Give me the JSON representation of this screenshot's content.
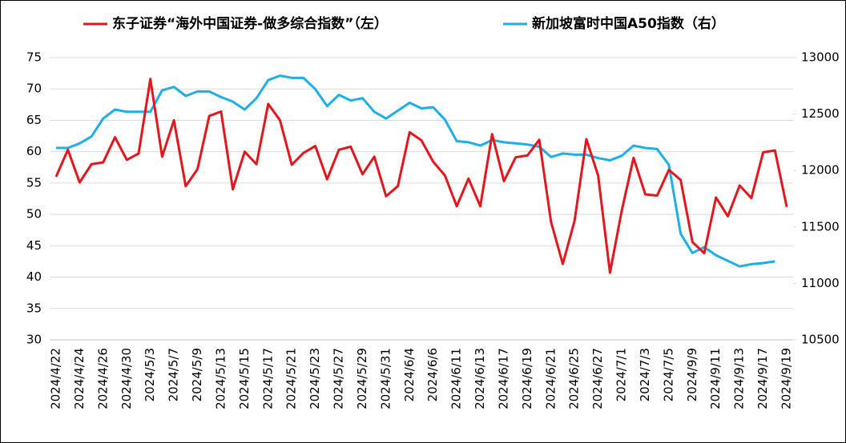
{
  "chart_data": {
    "type": "line",
    "categories": [
      "2024/4/22",
      null,
      "2024/4/24",
      null,
      "2024/4/26",
      null,
      "2024/4/30",
      null,
      "2024/5/3",
      null,
      "2024/5/7",
      null,
      "2024/5/9",
      null,
      "2024/5/13",
      null,
      "2024/5/15",
      null,
      "2024/5/17",
      null,
      "2024/5/21",
      null,
      "2024/5/23",
      null,
      "2024/5/27",
      null,
      "2024/5/29",
      null,
      "2024/5/31",
      null,
      "2024/6/4",
      null,
      "2024/6/6",
      null,
      "2024/6/11",
      null,
      "2024/6/13",
      null,
      "2024/6/17",
      null,
      "2024/6/19",
      null,
      "2024/6/21",
      null,
      "2024/6/25",
      null,
      "2024/6/27",
      null,
      "2024/7/1",
      null,
      "2024/7/3",
      null,
      "2024/7/5",
      null,
      "2024/9/9",
      null,
      "2024/9/11",
      null,
      "2024/9/13",
      null,
      "2024/9/17",
      null,
      "2024/9/19"
    ],
    "series": [
      {
        "name": "东子证券“海外中国证券-做多综合指数”（左）",
        "color": "#e8141b",
        "axis": "y",
        "values": [
          56,
          60.3,
          55.1,
          58,
          58.3,
          62.3,
          58.7,
          59.7,
          71.6,
          59.2,
          65,
          54.5,
          57.2,
          65.7,
          66.4,
          54,
          60,
          58,
          67.6,
          65,
          57.9,
          59.8,
          60.9,
          55.6,
          60.3,
          60.8,
          56.4,
          59.2,
          52.9,
          54.5,
          63.1,
          61.8,
          58.4,
          56.2,
          51.3,
          55.7,
          51.3,
          62.8,
          55.3,
          59.1,
          59.4,
          61.9,
          48.8,
          42.1,
          49,
          62,
          56.2,
          40.7,
          50.6,
          59,
          53.2,
          53,
          57.1,
          55.5,
          45.6,
          43.8,
          52.7,
          49.7,
          54.6,
          52.6,
          59.9,
          60.2,
          51.2
        ]
      },
      {
        "name": "新加坡富时中国A50指数（右）",
        "color": "#1eaee8",
        "axis": "y2",
        "values": [
          12200,
          12200,
          12240,
          12300,
          12460,
          12540,
          12520,
          12520,
          12520,
          12710,
          12740,
          12660,
          12700,
          12700,
          12650,
          12610,
          12540,
          12640,
          12800,
          12840,
          12820,
          12820,
          12720,
          12570,
          12670,
          12620,
          12640,
          12520,
          12460,
          12530,
          12600,
          12550,
          12560,
          12450,
          12260,
          12250,
          12220,
          12270,
          12250,
          12240,
          12230,
          12210,
          12120,
          12150,
          12140,
          12140,
          12110,
          12090,
          12130,
          12220,
          12200,
          12190,
          12050,
          11440,
          11270,
          11320,
          11250,
          11200,
          11150,
          11170,
          11180,
          11195,
          null
        ]
      }
    ],
    "ylim": [
      30,
      75
    ],
    "yticks": [
      30,
      35,
      40,
      45,
      50,
      55,
      60,
      65,
      70,
      75
    ],
    "y2lim": [
      10500,
      13000
    ],
    "y2ticks": [
      10500,
      11000,
      11500,
      12000,
      12500,
      13000
    ],
    "grid": true,
    "legend": "top"
  }
}
